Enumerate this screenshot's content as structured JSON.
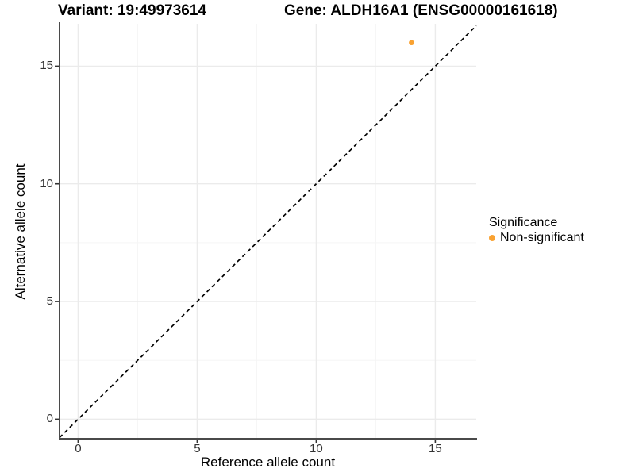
{
  "header": {
    "variant_title": "Variant: 19:49973614",
    "gene_title": "Gene: ALDH16A1 (ENSG00000161618)"
  },
  "axes": {
    "x_label": "Reference allele count",
    "y_label": "Alternative allele count"
  },
  "legend": {
    "title": "Significance",
    "items": [
      {
        "label": "Non-significant",
        "color": "#F9A232"
      }
    ]
  },
  "chart_data": {
    "type": "scatter",
    "title": "Variant: 19:49973614 | Gene: ALDH16A1 (ENSG00000161618)",
    "xlabel": "Reference allele count",
    "ylabel": "Alternative allele count",
    "xlim": [
      -0.78,
      16.72
    ],
    "ylim": [
      -0.83,
      16.8
    ],
    "x_ticks": [
      0,
      5,
      10,
      15
    ],
    "y_ticks": [
      0,
      5,
      10,
      15
    ],
    "grid": "major+minor",
    "legend_position": "right",
    "series": [
      {
        "name": "Non-significant",
        "color": "#F9A232",
        "points": [
          {
            "x": 14,
            "y": 16
          }
        ]
      }
    ],
    "reference_line": {
      "type": "identity y=x",
      "style": "dashed",
      "color": "#000000"
    }
  },
  "colors": {
    "background": "#ffffff",
    "axis_line": "#4a4a4a",
    "tick_mark": "#333333",
    "grid_major": "#ebebeb",
    "grid_minor": "#f5f5f5",
    "point": "#F9A232",
    "dashed_line": "#000000"
  }
}
